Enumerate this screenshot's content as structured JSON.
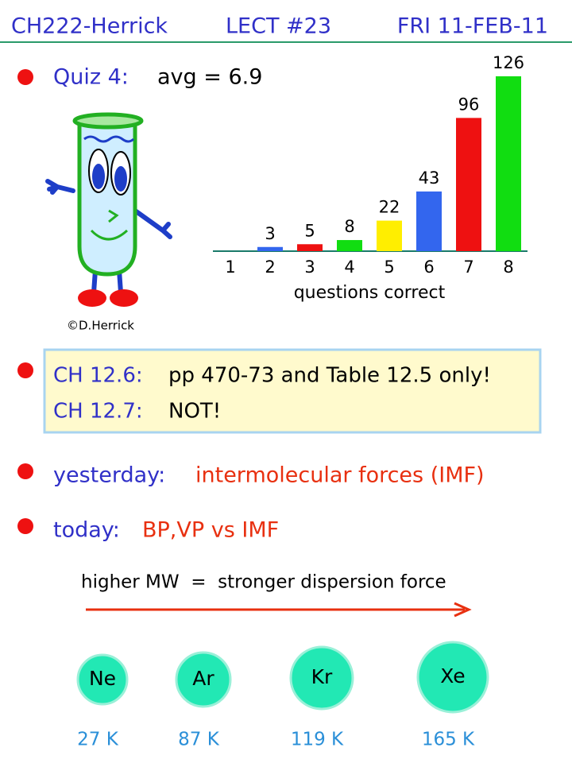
{
  "header": {
    "course": "CH222-Herrick",
    "lecture": "LECT #23",
    "date": "FRI 11-FEB-11"
  },
  "quiz": {
    "label": "Quiz 4:",
    "text": "avg = 6.9",
    "credit": "©D.Herrick"
  },
  "chart_data": {
    "type": "bar",
    "categories": [
      "1",
      "2",
      "3",
      "4",
      "5",
      "6",
      "7",
      "8"
    ],
    "values": [
      0,
      3,
      5,
      8,
      22,
      43,
      96,
      126
    ],
    "colors": [
      "#3366ee",
      "#3366ee",
      "#ee1111",
      "#11dd11",
      "#ffee00",
      "#3366ee",
      "#ee1111",
      "#11dd11"
    ],
    "xlabel": "questions correct"
  },
  "reading": {
    "rows": [
      {
        "label": "CH 12.6:",
        "text": "pp 470-73 and Table 12.5 only!"
      },
      {
        "label": "CH 12.7:",
        "text": "NOT!"
      }
    ]
  },
  "yesterday": {
    "label": "yesterday:",
    "text": "intermolecular forces (IMF)"
  },
  "today": {
    "label": "today:",
    "text": "BP,VP vs IMF"
  },
  "trend": "higher MW  =  stronger dispersion force",
  "atoms": [
    {
      "symbol": "Ne",
      "bp": "27 K"
    },
    {
      "symbol": "Ar",
      "bp": "87 K"
    },
    {
      "symbol": "Kr",
      "bp": "119 K"
    },
    {
      "symbol": "Xe",
      "bp": "165 K"
    }
  ]
}
